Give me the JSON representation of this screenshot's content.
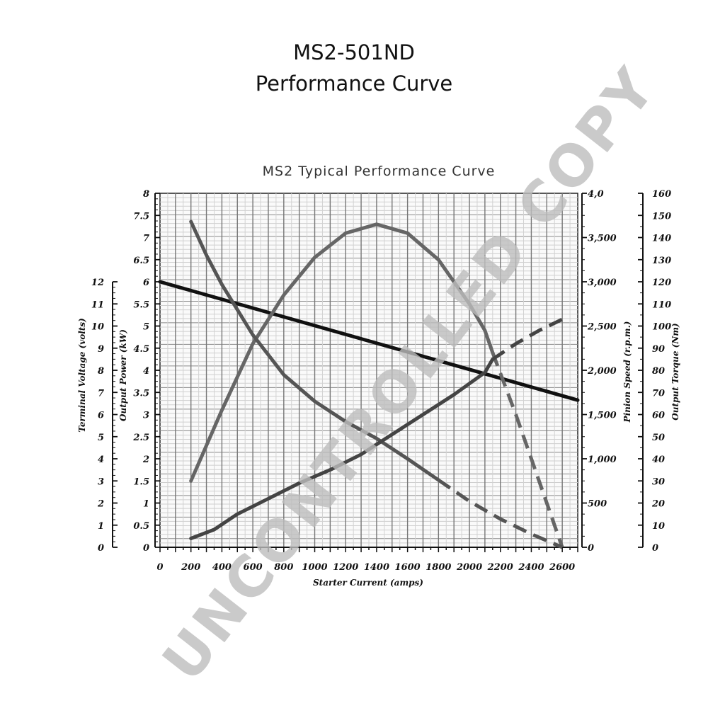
{
  "page": {
    "title_line1": "MS2-501ND",
    "title_line2": "Performance Curve",
    "watermark": "UNCONTROLLED COPY"
  },
  "chart_data": {
    "type": "line",
    "title": "MS2 Typical Performance Curve",
    "xlabel": "Starter Current  (amps)",
    "xlim": [
      0,
      2700
    ],
    "x_ticks": [
      0,
      200,
      400,
      600,
      800,
      1000,
      1200,
      1400,
      1600,
      1800,
      2000,
      2200,
      2400,
      2600
    ],
    "x_tick_labels": [
      "0",
      "200",
      "400",
      "600",
      "800",
      "1000",
      "1200",
      "1400",
      "1600",
      "1800",
      "2000",
      "2200",
      "2400",
      "2600"
    ],
    "grid": true,
    "axes": {
      "voltage": {
        "label": "Terminal Voltage (volts)",
        "range": [
          0,
          12
        ],
        "ticks": [
          "0",
          "1",
          "2",
          "3",
          "4",
          "5",
          "6",
          "7",
          "8",
          "9",
          "10",
          "11",
          "12"
        ]
      },
      "power": {
        "label": "Output Power (kW)",
        "range": [
          0,
          8
        ],
        "ticks": [
          "0",
          "0.5",
          "1",
          "1.5",
          "2",
          "2.5",
          "3",
          "3.5",
          "4",
          "4.5",
          "5",
          "5.5",
          "6",
          "6.5",
          "7",
          "7.5",
          "8"
        ]
      },
      "speed": {
        "label": "Pinion Speed (r.p.m.)",
        "range": [
          0,
          4000
        ],
        "ticks": [
          "0",
          "500",
          "1,000",
          "1,500",
          "2,000",
          "2,500",
          "3,000",
          "3,500",
          "4,0"
        ]
      },
      "torque": {
        "label": "Output Torque (Nm)",
        "range": [
          0,
          160
        ],
        "ticks": [
          "0",
          "10",
          "20",
          "30",
          "40",
          "50",
          "60",
          "70",
          "80",
          "90",
          "100",
          "110",
          "120",
          "130",
          "140",
          "150",
          "160"
        ]
      }
    },
    "series": [
      {
        "axis": "voltage",
        "color": "#111111",
        "dashed_from": null,
        "points": [
          [
            0,
            12.0
          ],
          [
            2700,
            6.65
          ]
        ]
      },
      {
        "axis": "power",
        "color": "#666666",
        "dashed_from": 2150,
        "points": [
          [
            200,
            1.5
          ],
          [
            400,
            3.1
          ],
          [
            600,
            4.6
          ],
          [
            800,
            5.7
          ],
          [
            1000,
            6.55
          ],
          [
            1200,
            7.1
          ],
          [
            1400,
            7.3
          ],
          [
            1600,
            7.1
          ],
          [
            1800,
            6.5
          ],
          [
            2000,
            5.5
          ],
          [
            2100,
            4.9
          ],
          [
            2150,
            4.4
          ],
          [
            2300,
            3.0
          ],
          [
            2450,
            1.5
          ],
          [
            2600,
            0
          ]
        ]
      },
      {
        "axis": "speed",
        "color": "#555555",
        "dashed_from": 1800,
        "points": [
          [
            200,
            3680
          ],
          [
            300,
            3300
          ],
          [
            400,
            2970
          ],
          [
            600,
            2400
          ],
          [
            800,
            1950
          ],
          [
            1000,
            1650
          ],
          [
            1200,
            1420
          ],
          [
            1400,
            1230
          ],
          [
            1600,
            1000
          ],
          [
            1800,
            760
          ],
          [
            2000,
            520
          ],
          [
            2200,
            320
          ],
          [
            2400,
            150
          ],
          [
            2600,
            0
          ]
        ]
      },
      {
        "axis": "torque",
        "color": "#444444",
        "dashed_from": 2150,
        "points": [
          [
            200,
            4
          ],
          [
            350,
            8
          ],
          [
            500,
            15
          ],
          [
            700,
            22
          ],
          [
            900,
            29
          ],
          [
            1100,
            35
          ],
          [
            1300,
            42
          ],
          [
            1500,
            51
          ],
          [
            1700,
            60
          ],
          [
            1900,
            69
          ],
          [
            2100,
            79
          ],
          [
            2150,
            85
          ],
          [
            2300,
            92
          ],
          [
            2450,
            98
          ],
          [
            2600,
            103
          ]
        ]
      }
    ]
  }
}
